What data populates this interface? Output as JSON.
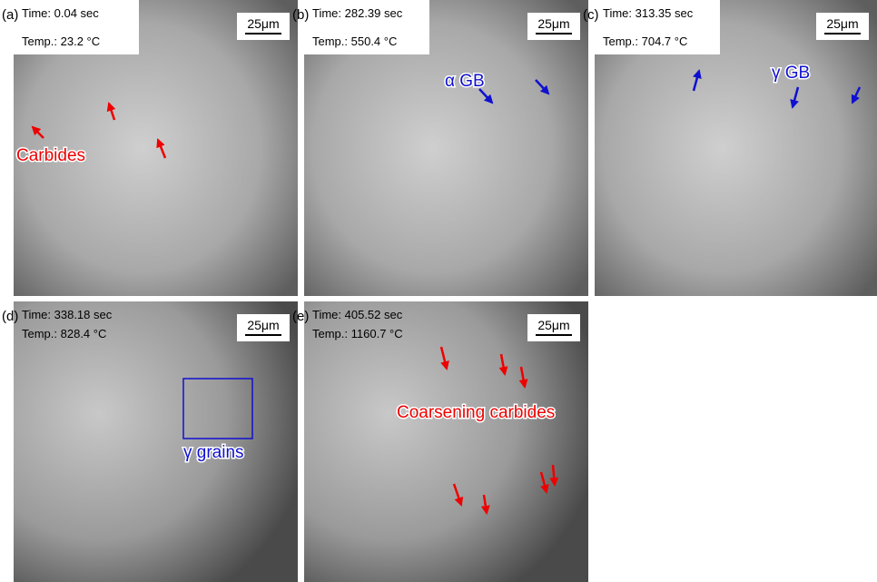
{
  "panels": [
    {
      "label": "(a)",
      "time": "Time: 0.04 sec",
      "temp": "Temp.: 23.2 °C",
      "scale": "25μm",
      "annotation": "Carbides"
    },
    {
      "label": "(b)",
      "time": "Time: 282.39 sec",
      "temp": "Temp.: 550.4 °C",
      "scale": "25μm",
      "annotation": "α GB"
    },
    {
      "label": "(c)",
      "time": "Time: 313.35 sec",
      "temp": "Temp.: 704.7 °C",
      "scale": "25μm",
      "annotation": "γ GB"
    },
    {
      "label": "(d)",
      "time": "Time: 338.18 sec",
      "temp": "Temp.: 828.4 °C",
      "scale": "25μm",
      "annotation": "γ grains"
    },
    {
      "label": "(e)",
      "time": "Time: 405.52 sec",
      "temp": "Temp.: 1160.7 °C",
      "scale": "25μm",
      "annotation": "Coarsening carbides"
    }
  ]
}
